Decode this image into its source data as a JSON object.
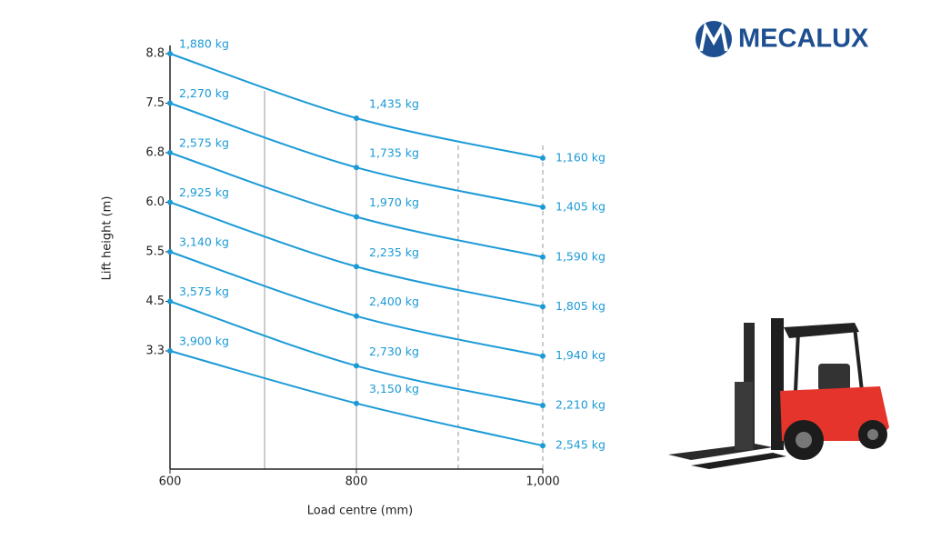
{
  "brand": "MECALUX",
  "chart_data": {
    "type": "line",
    "xlabel": "Load centre (mm)",
    "ylabel": "Lift height (m)",
    "x": [
      600,
      800,
      1000
    ],
    "xlim": [
      600,
      1000
    ],
    "xticks": [
      600,
      800,
      {
        "value": 1000,
        "label": "1,000"
      }
    ],
    "yticks": [
      8.8,
      7.5,
      6.8,
      {
        "value": 6,
        "label": "6.0"
      },
      5.5,
      4.5,
      3.3
    ],
    "color": "#1b9ad6",
    "series": [
      {
        "values": [
          1880,
          1435,
          1160
        ],
        "value_labels": [
          "1,880 kg",
          "1,435 kg",
          "1,160 kg"
        ]
      },
      {
        "values": [
          2270,
          1735,
          1405
        ],
        "value_labels": [
          "2,270 kg",
          "1,735 kg",
          "1,405 kg"
        ]
      },
      {
        "values": [
          2575,
          1970,
          1590
        ],
        "value_labels": [
          "2,575 kg",
          "1,970 kg",
          "1,590 kg"
        ]
      },
      {
        "values": [
          2925,
          2235,
          1805
        ],
        "value_labels": [
          "2,925 kg",
          "2,235 kg",
          "1,805 kg"
        ]
      },
      {
        "values": [
          3140,
          2400,
          1940
        ],
        "value_labels": [
          "3,140 kg",
          "2,400 kg",
          "1,940 kg"
        ]
      },
      {
        "values": [
          3575,
          2730,
          2210
        ],
        "value_labels": [
          "3,575 kg",
          "2,730 kg",
          "2,210 kg"
        ]
      },
      {
        "values": [
          3900,
          3150,
          2545
        ],
        "value_labels": [
          "3,900 kg",
          "3,150 kg",
          "2,545 kg"
        ]
      }
    ]
  }
}
